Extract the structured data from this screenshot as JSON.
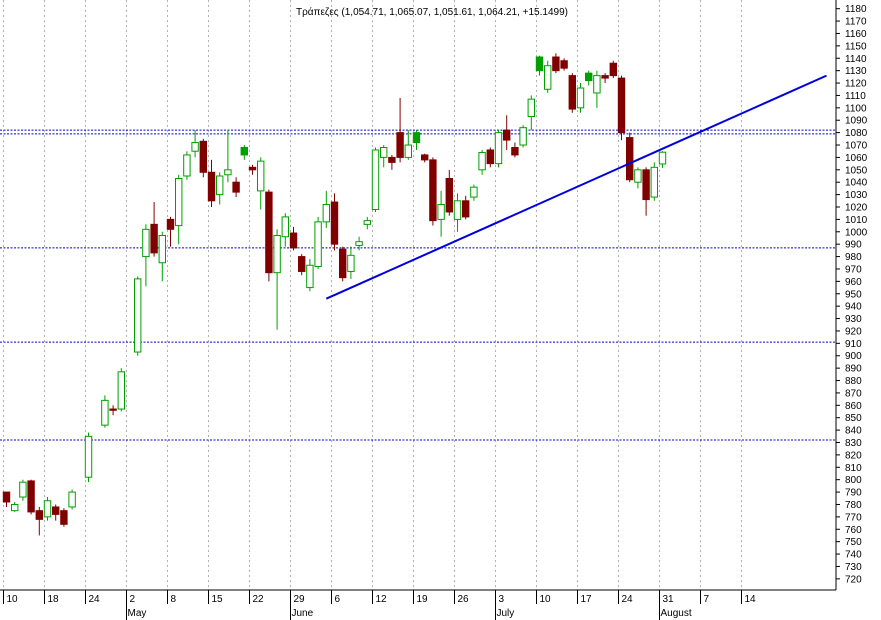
{
  "chart_data": {
    "type": "candlestick",
    "title": "Τράπεζες (1,054.71, 1,065.07, 1,051.61, 1,064.21, +15.1499)",
    "xlabel": "",
    "ylabel": "",
    "ylim": [
      711,
      1187
    ],
    "y_ticks": [
      720,
      730,
      740,
      750,
      760,
      770,
      780,
      790,
      800,
      810,
      820,
      830,
      840,
      850,
      860,
      870,
      880,
      890,
      900,
      910,
      920,
      930,
      940,
      950,
      960,
      970,
      980,
      990,
      1000,
      1010,
      1020,
      1030,
      1040,
      1050,
      1060,
      1070,
      1080,
      1090,
      1100,
      1110,
      1120,
      1130,
      1140,
      1150,
      1160,
      1170,
      1180
    ],
    "grid": "vertical dotted",
    "x_tick_labels": [
      "10",
      "18",
      "24",
      "2",
      "8",
      "15",
      "22",
      "29",
      "6",
      "12",
      "19",
      "26",
      "3",
      "10",
      "17",
      "24",
      "31",
      "7",
      "14"
    ],
    "month_labels": [
      {
        "label": "May",
        "at_tick": 3
      },
      {
        "label": "June",
        "at_tick": 7
      },
      {
        "label": "July",
        "at_tick": 12
      },
      {
        "label": "August",
        "at_tick": 16
      }
    ],
    "colors": {
      "up": "#00a000",
      "down": "#800000",
      "hline": "#0000cc",
      "trend": "#0000dd",
      "grid": "#b0b0b0"
    },
    "horizontal_lines": [
      1082,
      1079,
      987,
      911,
      832
    ],
    "trendline": {
      "from": {
        "bar": 39,
        "value": 946
      },
      "to": {
        "bar": 100,
        "value": 1126
      }
    },
    "candles": [
      {
        "o": 782,
        "h": 790,
        "l": 778,
        "c": 790,
        "k": "f"
      },
      {
        "o": 780,
        "h": 782,
        "l": 774,
        "c": 775,
        "k": "o"
      },
      {
        "o": 786,
        "h": 800,
        "l": 783,
        "c": 798,
        "k": "o"
      },
      {
        "o": 799,
        "h": 800,
        "l": 772,
        "c": 774,
        "k": "f"
      },
      {
        "o": 775,
        "h": 778,
        "l": 755,
        "c": 768,
        "k": "f"
      },
      {
        "o": 770,
        "h": 786,
        "l": 767,
        "c": 783,
        "k": "o"
      },
      {
        "o": 778,
        "h": 780,
        "l": 767,
        "c": 772,
        "k": "f"
      },
      {
        "o": 775,
        "h": 777,
        "l": 762,
        "c": 764,
        "k": "f"
      },
      {
        "o": 778,
        "h": 792,
        "l": 776,
        "c": 790,
        "k": "o"
      },
      {
        "o": 802,
        "h": 838,
        "l": 798,
        "c": 835,
        "k": "o"
      },
      {
        "o": 844,
        "h": 868,
        "l": 842,
        "c": 864,
        "k": "o"
      },
      {
        "o": 856,
        "h": 860,
        "l": 852,
        "c": 857,
        "k": "f"
      },
      {
        "o": 857,
        "h": 890,
        "l": 855,
        "c": 887,
        "k": "o"
      },
      {
        "o": 903,
        "h": 964,
        "l": 900,
        "c": 962,
        "k": "o"
      },
      {
        "o": 980,
        "h": 1006,
        "l": 956,
        "c": 1002,
        "k": "o"
      },
      {
        "o": 1006,
        "h": 1024,
        "l": 980,
        "c": 983,
        "k": "f"
      },
      {
        "o": 975,
        "h": 1000,
        "l": 960,
        "c": 997,
        "k": "o"
      },
      {
        "o": 1002,
        "h": 1012,
        "l": 988,
        "c": 1010,
        "k": "f"
      },
      {
        "o": 1005,
        "h": 1046,
        "l": 990,
        "c": 1043,
        "k": "o"
      },
      {
        "o": 1045,
        "h": 1065,
        "l": 1042,
        "c": 1062,
        "k": "o"
      },
      {
        "o": 1065,
        "h": 1082,
        "l": 1060,
        "c": 1072,
        "k": "o"
      },
      {
        "o": 1073,
        "h": 1075,
        "l": 1044,
        "c": 1048,
        "k": "f"
      },
      {
        "o": 1048,
        "h": 1058,
        "l": 1020,
        "c": 1025,
        "k": "f"
      },
      {
        "o": 1030,
        "h": 1048,
        "l": 1022,
        "c": 1045,
        "k": "o"
      },
      {
        "o": 1046,
        "h": 1082,
        "l": 1040,
        "c": 1050,
        "k": "o"
      },
      {
        "o": 1040,
        "h": 1044,
        "l": 1028,
        "c": 1032,
        "k": "f"
      },
      {
        "o": 1068,
        "h": 1070,
        "l": 1058,
        "c": 1062,
        "k": "g"
      },
      {
        "o": 1052,
        "h": 1054,
        "l": 1046,
        "c": 1050,
        "k": "f"
      },
      {
        "o": 1033,
        "h": 1060,
        "l": 1018,
        "c": 1057,
        "k": "o"
      },
      {
        "o": 1032,
        "h": 1034,
        "l": 960,
        "c": 967,
        "k": "f"
      },
      {
        "o": 967,
        "h": 1002,
        "l": 921,
        "c": 997,
        "k": "o"
      },
      {
        "o": 996,
        "h": 1015,
        "l": 988,
        "c": 1012,
        "k": "o"
      },
      {
        "o": 999,
        "h": 1004,
        "l": 985,
        "c": 987,
        "k": "f"
      },
      {
        "o": 980,
        "h": 982,
        "l": 965,
        "c": 968,
        "k": "f"
      },
      {
        "o": 955,
        "h": 978,
        "l": 952,
        "c": 973,
        "k": "o"
      },
      {
        "o": 972,
        "h": 1012,
        "l": 970,
        "c": 1008,
        "k": "o"
      },
      {
        "o": 1008,
        "h": 1033,
        "l": 1003,
        "c": 1022,
        "k": "o"
      },
      {
        "o": 1024,
        "h": 1031,
        "l": 985,
        "c": 990,
        "k": "f"
      },
      {
        "o": 986,
        "h": 988,
        "l": 960,
        "c": 963,
        "k": "f"
      },
      {
        "o": 968,
        "h": 988,
        "l": 962,
        "c": 981,
        "k": "o"
      },
      {
        "o": 992,
        "h": 996,
        "l": 985,
        "c": 989,
        "k": "o"
      },
      {
        "o": 1006,
        "h": 1012,
        "l": 1002,
        "c": 1009,
        "k": "o"
      },
      {
        "o": 1018,
        "h": 1068,
        "l": 1016,
        "c": 1066,
        "k": "o"
      },
      {
        "o": 1068,
        "h": 1070,
        "l": 1052,
        "c": 1060,
        "k": "o"
      },
      {
        "o": 1060,
        "h": 1062,
        "l": 1050,
        "c": 1056,
        "k": "f"
      },
      {
        "o": 1080,
        "h": 1108,
        "l": 1056,
        "c": 1060,
        "k": "f"
      },
      {
        "o": 1060,
        "h": 1082,
        "l": 1058,
        "c": 1070,
        "k": "o"
      },
      {
        "o": 1072,
        "h": 1082,
        "l": 1066,
        "c": 1080,
        "k": "g"
      },
      {
        "o": 1062,
        "h": 1063,
        "l": 1056,
        "c": 1058,
        "k": "f"
      },
      {
        "o": 1058,
        "h": 1060,
        "l": 1005,
        "c": 1009,
        "k": "f"
      },
      {
        "o": 1010,
        "h": 1033,
        "l": 996,
        "c": 1022,
        "k": "o"
      },
      {
        "o": 1043,
        "h": 1050,
        "l": 1013,
        "c": 1016,
        "k": "f"
      },
      {
        "o": 1010,
        "h": 1031,
        "l": 1000,
        "c": 1025,
        "k": "o"
      },
      {
        "o": 1025,
        "h": 1029,
        "l": 1010,
        "c": 1012,
        "k": "f"
      },
      {
        "o": 1028,
        "h": 1038,
        "l": 1025,
        "c": 1036,
        "k": "o"
      },
      {
        "o": 1050,
        "h": 1066,
        "l": 1046,
        "c": 1064,
        "k": "o"
      },
      {
        "o": 1066,
        "h": 1068,
        "l": 1052,
        "c": 1055,
        "k": "f"
      },
      {
        "o": 1055,
        "h": 1082,
        "l": 1052,
        "c": 1080,
        "k": "o"
      },
      {
        "o": 1082,
        "h": 1094,
        "l": 1066,
        "c": 1074,
        "k": "f"
      },
      {
        "o": 1068,
        "h": 1072,
        "l": 1060,
        "c": 1062,
        "k": "f"
      },
      {
        "o": 1070,
        "h": 1086,
        "l": 1068,
        "c": 1084,
        "k": "o"
      },
      {
        "o": 1093,
        "h": 1110,
        "l": 1082,
        "c": 1107,
        "k": "o"
      },
      {
        "o": 1130,
        "h": 1142,
        "l": 1126,
        "c": 1141,
        "k": "g"
      },
      {
        "o": 1115,
        "h": 1138,
        "l": 1112,
        "c": 1134,
        "k": "o"
      },
      {
        "o": 1141,
        "h": 1144,
        "l": 1128,
        "c": 1130,
        "k": "f"
      },
      {
        "o": 1138,
        "h": 1140,
        "l": 1130,
        "c": 1132,
        "k": "f"
      },
      {
        "o": 1126,
        "h": 1128,
        "l": 1096,
        "c": 1099,
        "k": "f"
      },
      {
        "o": 1100,
        "h": 1120,
        "l": 1096,
        "c": 1116,
        "k": "o"
      },
      {
        "o": 1122,
        "h": 1130,
        "l": 1118,
        "c": 1128,
        "k": "g"
      },
      {
        "o": 1126,
        "h": 1130,
        "l": 1100,
        "c": 1112,
        "k": "o"
      },
      {
        "o": 1126,
        "h": 1128,
        "l": 1120,
        "c": 1124,
        "k": "f"
      },
      {
        "o": 1136,
        "h": 1138,
        "l": 1124,
        "c": 1126,
        "k": "f"
      },
      {
        "o": 1124,
        "h": 1126,
        "l": 1074,
        "c": 1080,
        "k": "f"
      },
      {
        "o": 1076,
        "h": 1080,
        "l": 1040,
        "c": 1042,
        "k": "f"
      },
      {
        "o": 1040,
        "h": 1052,
        "l": 1035,
        "c": 1050,
        "k": "o"
      },
      {
        "o": 1050,
        "h": 1052,
        "l": 1013,
        "c": 1026,
        "k": "f"
      },
      {
        "o": 1028,
        "h": 1056,
        "l": 1025,
        "c": 1052,
        "k": "o"
      },
      {
        "o": 1054.71,
        "h": 1065.07,
        "l": 1051.61,
        "c": 1064.21,
        "k": "o"
      }
    ],
    "candle_slots": [
      0,
      1,
      2,
      3,
      4,
      5,
      6,
      7,
      8,
      10,
      12,
      13,
      14,
      16,
      17,
      18,
      19,
      20,
      21,
      22,
      23,
      24,
      25,
      26,
      27,
      28,
      29,
      30,
      31,
      32,
      33,
      34,
      35,
      36,
      37,
      38,
      39,
      40,
      41,
      42,
      43,
      44,
      45,
      46,
      47,
      48,
      49,
      50,
      51,
      52,
      53,
      54,
      55,
      56,
      57,
      58,
      59,
      60,
      61,
      62,
      63,
      64,
      65,
      66,
      67,
      68,
      69,
      70,
      71,
      72,
      73,
      74,
      75,
      76,
      77,
      78,
      79,
      80
    ],
    "x_tick_slots": [
      0,
      5,
      10,
      15,
      20,
      25,
      30,
      35,
      40,
      45,
      50,
      55,
      60,
      65,
      70,
      75,
      80,
      85,
      90
    ]
  }
}
